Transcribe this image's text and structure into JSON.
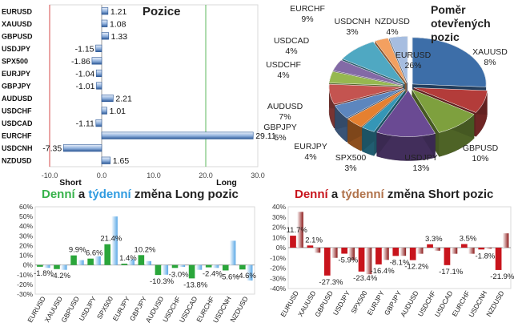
{
  "chart_data": [
    {
      "type": "bar",
      "orientation": "horizontal",
      "title": "Pozice",
      "categories": [
        "EURUSD",
        "XAUUSD",
        "GBPUSD",
        "USDJPY",
        "SPX500",
        "EURJPY",
        "GBPJPY",
        "AUDUSD",
        "USDCHF",
        "USDCAD",
        "EURCHF",
        "USDCNH",
        "NZDUSD"
      ],
      "values": [
        1.21,
        1.08,
        1.33,
        -1.15,
        -1.86,
        -1.04,
        -1.01,
        2.21,
        1.01,
        -1.11,
        29.11,
        -7.35,
        1.65
      ],
      "value_labels": [
        "1.21",
        "1.08",
        "1.33",
        "-1.15",
        "-1.86",
        "-1.04",
        "-1.01",
        "2.21",
        "1.01",
        "-1.11",
        "29.11",
        "-7.35",
        "1.65"
      ],
      "xlim": [
        -10,
        30
      ],
      "ticks": [
        "-10.0",
        "0.0",
        "10.0",
        "20.0",
        "30.0"
      ],
      "annotations": {
        "short": "Short",
        "long": "Long"
      },
      "grid": false
    },
    {
      "type": "pie",
      "title": "Poměr otevřených pozic",
      "labels": [
        "EURUSD",
        "XAUUSD",
        "GBPUSD",
        "USDJPY",
        "SPX500",
        "EURJPY",
        "GBPJPY",
        "AUDUSD",
        "USDCHF",
        "USDCAD",
        "EURCHF",
        "USDCNH",
        "NZDUSD"
      ],
      "values": [
        26,
        8,
        10,
        13,
        3,
        4,
        5,
        7,
        4,
        4,
        9,
        3,
        4
      ],
      "value_labels": [
        "26%",
        "8%",
        "10%",
        "13%",
        "3%",
        "4%",
        "5%",
        "7%",
        "4%",
        "4%",
        "9%",
        "3%",
        "4%"
      ],
      "colors": [
        "#3d6ea8",
        "#b33c3a",
        "#7ea03e",
        "#6a4a93",
        "#3596b6",
        "#e58030",
        "#5d86be",
        "#c45450",
        "#96b850",
        "#836aa6",
        "#4fa8c2",
        "#f3a060",
        "#a6bde0"
      ]
    },
    {
      "type": "bar",
      "title_parts": {
        "daily": "Denní",
        "and": " a ",
        "weekly": "týdenní",
        "rest": " změna Long pozic"
      },
      "categories": [
        "EURUSD",
        "XAUUSD",
        "GBPUSD",
        "USDJPY",
        "SPX500",
        "EURJPY",
        "GBPJPY",
        "AUDUSD",
        "USDCHF",
        "USDCAD",
        "EURCHF",
        "USDCNH",
        "NZDUSD"
      ],
      "series": [
        {
          "values": [
            -1.8,
            -4.2,
            9.9,
            6.6,
            21.4,
            1.4,
            10.2,
            -10.3,
            -3.0,
            -13.8,
            -2.4,
            -5.6,
            -4.6
          ]
        },
        {
          "values": [
            -3.0,
            -5.0,
            5.0,
            9.0,
            50.0,
            6.0,
            4.0,
            -10.0,
            -2.0,
            -5.0,
            -3.0,
            25.0,
            -16.0
          ]
        }
      ],
      "value_labels": [
        "-1.8%",
        "-4.2%",
        "9.9%",
        "6.6%",
        "21.4%",
        "1.4%",
        "10.2%",
        "-10.3%",
        "-3.0%",
        "-13.8%",
        "-2.4%",
        "-5.6%",
        "-4.6%"
      ],
      "ylim": [
        -30,
        60
      ],
      "yticks": [
        "60%",
        "50%",
        "40%",
        "30%",
        "20%",
        "10%",
        "0%",
        "-10%",
        "-20%",
        "-30%"
      ],
      "colors": {
        "daily": "#2aa63a",
        "weekly": "#5aa8e6"
      },
      "grid": false
    },
    {
      "type": "bar",
      "title_parts": {
        "daily": "Denní",
        "and": " a ",
        "weekly": "týdenní",
        "rest": " změna Short pozic"
      },
      "categories": [
        "EURUSD",
        "XAUUSD",
        "GBPUSD",
        "USDJPY",
        "SPX500",
        "EURJPY",
        "GBPJPY",
        "AUDUSD",
        "USDCHF",
        "USDCAD",
        "EURCHF",
        "USDCNH",
        "NZDUSD"
      ],
      "series": [
        {
          "values": [
            11.7,
            2.1,
            -27.3,
            -5.9,
            -23.4,
            -16.4,
            -8.1,
            -12.2,
            3.3,
            -17.1,
            3.5,
            -1.8,
            -21.9
          ]
        },
        {
          "values": [
            35.0,
            -5.0,
            -10.0,
            -12.0,
            -26.0,
            -12.0,
            -8.0,
            -6.0,
            -3.0,
            -6.0,
            -6.0,
            -1.0,
            14.0
          ]
        }
      ],
      "value_labels": [
        "11.7%",
        "2.1%",
        "-27.3%",
        "-5.9%",
        "-23.4%",
        "-16.4%",
        "-8.1%",
        "-12.2%",
        "3.3%",
        "-17.1%",
        "3.5%",
        "-1.8%",
        "-21.9%"
      ],
      "ylim": [
        -40,
        40
      ],
      "yticks": [
        "40%",
        "30%",
        "20%",
        "10%",
        "0%",
        "-10%",
        "-20%",
        "-30%",
        "-40%"
      ],
      "colors": {
        "daily": "#c8141c",
        "weekly": "#8c1a1a"
      },
      "grid": false
    }
  ]
}
